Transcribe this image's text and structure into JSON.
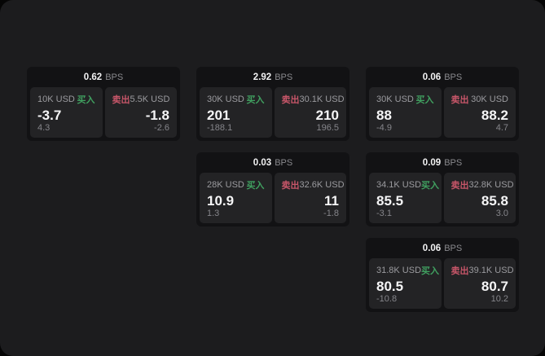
{
  "labels": {
    "bps": "BPS",
    "buy": "买入",
    "sell": "卖出"
  },
  "colors": {
    "buy_color": "#40a060",
    "sell_color": "#c75669",
    "surface_color": "#1c1c1e",
    "card_color": "#121214",
    "panel_color": "#232325"
  },
  "cards": [
    {
      "bps": "0.62",
      "buy": {
        "amount": "10K USD",
        "value": "-3.7",
        "sub": "4.3"
      },
      "sell": {
        "amount": "5.5K USD",
        "value": "-1.8",
        "sub": "-2.6"
      }
    },
    {
      "bps": "2.92",
      "buy": {
        "amount": "30K USD",
        "value": "201",
        "sub": "-188.1"
      },
      "sell": {
        "amount": "30.1K USD",
        "value": "210",
        "sub": "196.5"
      }
    },
    {
      "bps": "0.06",
      "buy": {
        "amount": "30K USD",
        "value": "88",
        "sub": "-4.9"
      },
      "sell": {
        "amount": "30K USD",
        "value": "88.2",
        "sub": "4.7"
      }
    },
    {
      "bps": "0.03",
      "buy": {
        "amount": "28K USD",
        "value": "10.9",
        "sub": "1.3"
      },
      "sell": {
        "amount": "32.6K USD",
        "value": "11",
        "sub": "-1.8"
      }
    },
    {
      "bps": "0.09",
      "buy": {
        "amount": "34.1K USD",
        "value": "85.5",
        "sub": "-3.1"
      },
      "sell": {
        "amount": "32.8K USD",
        "value": "85.8",
        "sub": "3.0"
      }
    },
    {
      "bps": "0.06",
      "buy": {
        "amount": "31.8K USD",
        "value": "80.5",
        "sub": "-10.8"
      },
      "sell": {
        "amount": "39.1K USD",
        "value": "80.7",
        "sub": "10.2"
      }
    }
  ]
}
